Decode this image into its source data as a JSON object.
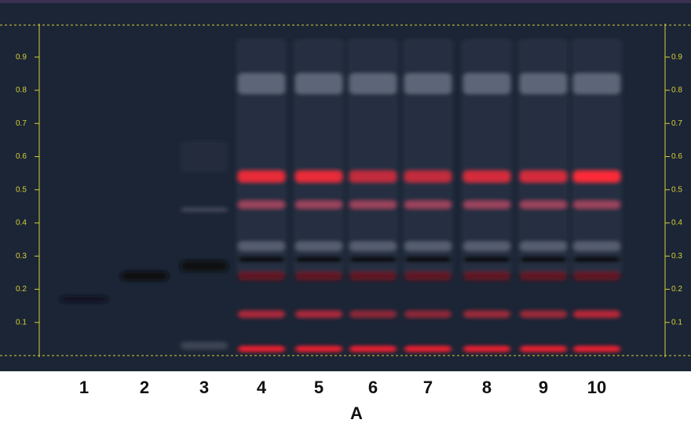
{
  "plate": {
    "rf_ticks": [
      0.1,
      0.2,
      0.3,
      0.4,
      0.5,
      0.6,
      0.7,
      0.8,
      0.9
    ],
    "lanes": [
      "1",
      "2",
      "3",
      "4",
      "5",
      "6",
      "7",
      "8",
      "9",
      "10"
    ],
    "label": "A"
  }
}
